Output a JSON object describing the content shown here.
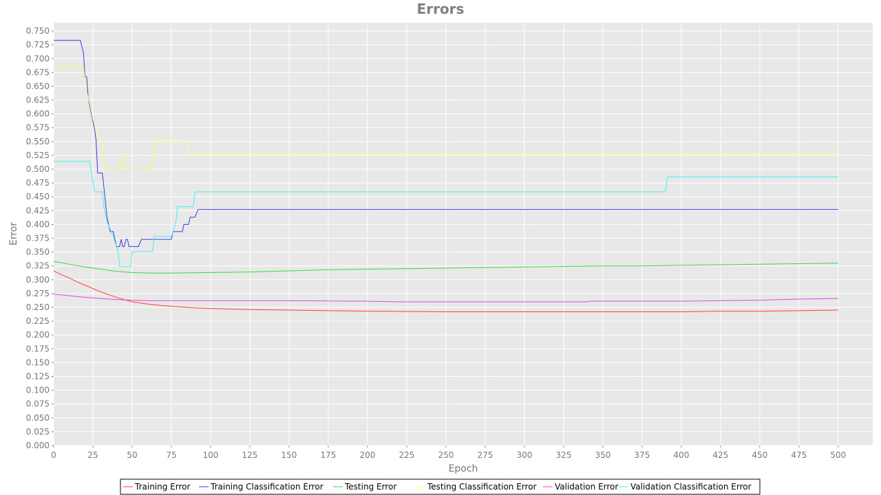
{
  "chart_data": {
    "type": "line",
    "title": "Errors",
    "xlabel": "Epoch",
    "ylabel": "Error",
    "xlim": [
      0,
      522
    ],
    "ylim": [
      0,
      0.765
    ],
    "x_ticks": [
      0,
      25,
      50,
      75,
      100,
      125,
      150,
      175,
      200,
      225,
      250,
      275,
      300,
      325,
      350,
      375,
      400,
      425,
      450,
      475,
      500
    ],
    "x_tick_labels": [
      "0",
      "25",
      "50",
      "75",
      "100",
      "125",
      "150",
      "175",
      "200",
      "225",
      "250",
      "275",
      "300",
      "325",
      "350",
      "375",
      "400",
      "425",
      "450",
      "475",
      "500"
    ],
    "y_ticks": [
      0,
      0.025,
      0.05,
      0.075,
      0.1,
      0.125,
      0.15,
      0.175,
      0.2,
      0.225,
      0.25,
      0.275,
      0.3,
      0.325,
      0.35,
      0.375,
      0.4,
      0.425,
      0.45,
      0.475,
      0.5,
      0.525,
      0.55,
      0.575,
      0.6,
      0.625,
      0.65,
      0.675,
      0.7,
      0.725,
      0.75
    ],
    "y_tick_labels": [
      "0.000",
      "0.025",
      "0.050",
      "0.075",
      "0.100",
      "0.125",
      "0.150",
      "0.175",
      "0.200",
      "0.225",
      "0.250",
      "0.275",
      "0.300",
      "0.325",
      "0.350",
      "0.375",
      "0.400",
      "0.425",
      "0.450",
      "0.475",
      "0.500",
      "0.525",
      "0.550",
      "0.575",
      "0.600",
      "0.625",
      "0.650",
      "0.675",
      "0.700",
      "0.725",
      "0.750"
    ],
    "grid": true,
    "background": "#e8e8e8",
    "grid_color": "#ffffff",
    "legend_position": "bottom",
    "series": [
      {
        "name": "Training Error",
        "color": "#ff3b3b",
        "step": false,
        "points": [
          [
            0,
            0.316
          ],
          [
            5,
            0.309
          ],
          [
            10,
            0.303
          ],
          [
            15,
            0.296
          ],
          [
            20,
            0.29
          ],
          [
            25,
            0.284
          ],
          [
            30,
            0.278
          ],
          [
            35,
            0.273
          ],
          [
            40,
            0.268
          ],
          [
            45,
            0.264
          ],
          [
            50,
            0.26
          ],
          [
            60,
            0.256
          ],
          [
            70,
            0.253
          ],
          [
            80,
            0.251
          ],
          [
            90,
            0.249
          ],
          [
            100,
            0.248
          ],
          [
            125,
            0.246
          ],
          [
            150,
            0.245
          ],
          [
            175,
            0.244
          ],
          [
            200,
            0.243
          ],
          [
            250,
            0.242
          ],
          [
            300,
            0.242
          ],
          [
            350,
            0.242
          ],
          [
            400,
            0.242
          ],
          [
            425,
            0.243
          ],
          [
            450,
            0.243
          ],
          [
            475,
            0.244
          ],
          [
            500,
            0.245
          ]
        ]
      },
      {
        "name": "Training Classification Error",
        "color": "#3b3bd9",
        "step": false,
        "points": [
          [
            0,
            0.733
          ],
          [
            17,
            0.733
          ],
          [
            19,
            0.71
          ],
          [
            20,
            0.667
          ],
          [
            21,
            0.667
          ],
          [
            22,
            0.63
          ],
          [
            24,
            0.6
          ],
          [
            26,
            0.573
          ],
          [
            27,
            0.553
          ],
          [
            28,
            0.493
          ],
          [
            31,
            0.493
          ],
          [
            32,
            0.467
          ],
          [
            34,
            0.413
          ],
          [
            36,
            0.387
          ],
          [
            38,
            0.387
          ],
          [
            40,
            0.36
          ],
          [
            42,
            0.36
          ],
          [
            43,
            0.373
          ],
          [
            44,
            0.36
          ],
          [
            45,
            0.36
          ],
          [
            46,
            0.373
          ],
          [
            47,
            0.373
          ],
          [
            48,
            0.36
          ],
          [
            54,
            0.36
          ],
          [
            56,
            0.373
          ],
          [
            75,
            0.373
          ],
          [
            76,
            0.387
          ],
          [
            82,
            0.387
          ],
          [
            83,
            0.4
          ],
          [
            86,
            0.4
          ],
          [
            87,
            0.413
          ],
          [
            90,
            0.413
          ],
          [
            92,
            0.427
          ],
          [
            500,
            0.427
          ]
        ]
      },
      {
        "name": "Testing Error",
        "color": "#33dd33",
        "step": false,
        "points": [
          [
            0,
            0.333
          ],
          [
            10,
            0.328
          ],
          [
            20,
            0.323
          ],
          [
            30,
            0.319
          ],
          [
            40,
            0.315
          ],
          [
            50,
            0.313
          ],
          [
            60,
            0.312
          ],
          [
            75,
            0.312
          ],
          [
            100,
            0.313
          ],
          [
            125,
            0.314
          ],
          [
            150,
            0.316
          ],
          [
            175,
            0.318
          ],
          [
            200,
            0.319
          ],
          [
            225,
            0.32
          ],
          [
            250,
            0.321
          ],
          [
            275,
            0.322
          ],
          [
            300,
            0.323
          ],
          [
            325,
            0.324
          ],
          [
            350,
            0.325
          ],
          [
            375,
            0.325
          ],
          [
            400,
            0.326
          ],
          [
            425,
            0.327
          ],
          [
            450,
            0.328
          ],
          [
            475,
            0.329
          ],
          [
            500,
            0.33
          ]
        ]
      },
      {
        "name": "Testing Classification Error",
        "color": "#ffff66",
        "step": false,
        "points": [
          [
            0,
            0.685
          ],
          [
            19,
            0.685
          ],
          [
            21,
            0.64
          ],
          [
            23,
            0.62
          ],
          [
            25,
            0.59
          ],
          [
            27,
            0.575
          ],
          [
            28,
            0.555
          ],
          [
            30,
            0.555
          ],
          [
            32,
            0.52
          ],
          [
            33,
            0.5
          ],
          [
            43,
            0.5
          ],
          [
            44,
            0.528
          ],
          [
            45,
            0.5
          ],
          [
            62,
            0.5
          ],
          [
            64,
            0.528
          ],
          [
            66,
            0.552
          ],
          [
            85,
            0.552
          ],
          [
            86,
            0.527
          ],
          [
            500,
            0.527
          ]
        ]
      },
      {
        "name": "Validation Error",
        "color": "#e045e0",
        "step": false,
        "points": [
          [
            0,
            0.274
          ],
          [
            10,
            0.271
          ],
          [
            20,
            0.268
          ],
          [
            30,
            0.266
          ],
          [
            40,
            0.264
          ],
          [
            50,
            0.263
          ],
          [
            60,
            0.262
          ],
          [
            100,
            0.262
          ],
          [
            150,
            0.262
          ],
          [
            200,
            0.261
          ],
          [
            220,
            0.26
          ],
          [
            250,
            0.26
          ],
          [
            300,
            0.26
          ],
          [
            340,
            0.26
          ],
          [
            341,
            0.261
          ],
          [
            400,
            0.261
          ],
          [
            450,
            0.263
          ],
          [
            475,
            0.265
          ],
          [
            500,
            0.266
          ]
        ]
      },
      {
        "name": "Validation Classification Error",
        "color": "#44eeee",
        "step": false,
        "points": [
          [
            0,
            0.514
          ],
          [
            23,
            0.514
          ],
          [
            26,
            0.459
          ],
          [
            31,
            0.459
          ],
          [
            32,
            0.432
          ],
          [
            34,
            0.405
          ],
          [
            38,
            0.378
          ],
          [
            41,
            0.351
          ],
          [
            42,
            0.324
          ],
          [
            49,
            0.324
          ],
          [
            50,
            0.351
          ],
          [
            63,
            0.351
          ],
          [
            64,
            0.378
          ],
          [
            75,
            0.378
          ],
          [
            78,
            0.405
          ],
          [
            79,
            0.432
          ],
          [
            89,
            0.432
          ],
          [
            90,
            0.459
          ],
          [
            390,
            0.459
          ],
          [
            391,
            0.486
          ],
          [
            500,
            0.486
          ]
        ]
      }
    ]
  }
}
